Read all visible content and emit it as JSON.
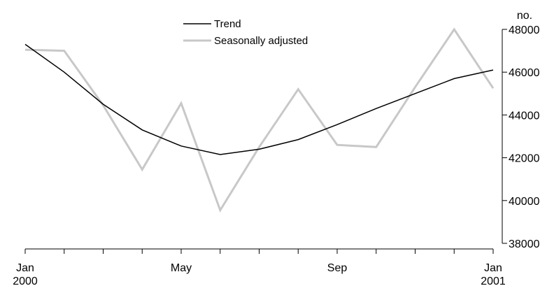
{
  "chart_data": {
    "type": "line",
    "x": [
      "Jan 2000",
      "Feb 2000",
      "Mar 2000",
      "Apr 2000",
      "May 2000",
      "Jun 2000",
      "Jul 2000",
      "Aug 2000",
      "Sep 2000",
      "Oct 2000",
      "Nov 2000",
      "Dec 2000",
      "Jan 2001"
    ],
    "series": [
      {
        "name": "Trend",
        "color": "#000000",
        "values": [
          47300,
          46000,
          44500,
          43300,
          42550,
          42150,
          42400,
          42850,
          43550,
          44300,
          45000,
          45700,
          46100
        ]
      },
      {
        "name": "Seasonally adjusted",
        "color": "#c8c8c8",
        "values": [
          47050,
          47000,
          44450,
          41450,
          44550,
          39550,
          42500,
          45200,
          42600,
          42500,
          45300,
          48000,
          45250
        ]
      }
    ],
    "unit_label": "no.",
    "ylim": [
      38000,
      48000
    ],
    "yticks": [
      {
        "value": 38000,
        "label": "38000"
      },
      {
        "value": 40000,
        "label": "40000"
      },
      {
        "value": 42000,
        "label": "42000"
      },
      {
        "value": 44000,
        "label": "44000"
      },
      {
        "value": 46000,
        "label": "46000"
      },
      {
        "value": 48000,
        "label": "48000"
      }
    ],
    "xtick_labels": [
      {
        "index": 0,
        "month": "Jan",
        "year": "2000"
      },
      {
        "index": 4,
        "month": "May",
        "year": ""
      },
      {
        "index": 8,
        "month": "Sep",
        "year": ""
      },
      {
        "index": 12,
        "month": "Jan",
        "year": "2001"
      }
    ],
    "y_axis_side": "right",
    "grid": false,
    "legend_position": "top-center"
  }
}
